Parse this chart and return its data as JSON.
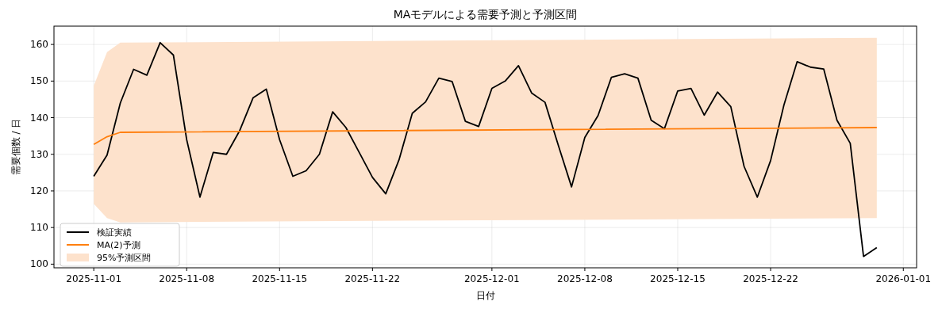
{
  "chart_data": {
    "type": "line",
    "title": "MAモデルによる需要予測と予測区間",
    "xlabel": "日付",
    "ylabel": "需要個数 / 日",
    "x": [
      "2025-11-01",
      "2025-11-02",
      "2025-11-03",
      "2025-11-04",
      "2025-11-05",
      "2025-11-06",
      "2025-11-07",
      "2025-11-08",
      "2025-11-09",
      "2025-11-10",
      "2025-11-11",
      "2025-11-12",
      "2025-11-13",
      "2025-11-14",
      "2025-11-15",
      "2025-11-16",
      "2025-11-17",
      "2025-11-18",
      "2025-11-19",
      "2025-11-20",
      "2025-11-21",
      "2025-11-22",
      "2025-11-23",
      "2025-11-24",
      "2025-11-25",
      "2025-11-26",
      "2025-11-27",
      "2025-11-28",
      "2025-11-29",
      "2025-11-30",
      "2025-12-01",
      "2025-12-02",
      "2025-12-03",
      "2025-12-04",
      "2025-12-05",
      "2025-12-06",
      "2025-12-07",
      "2025-12-08",
      "2025-12-09",
      "2025-12-10",
      "2025-12-11",
      "2025-12-12",
      "2025-12-13",
      "2025-12-14",
      "2025-12-15",
      "2025-12-16",
      "2025-12-17",
      "2025-12-18",
      "2025-12-19",
      "2025-12-20",
      "2025-12-21",
      "2025-12-22",
      "2025-12-23",
      "2025-12-24",
      "2025-12-25",
      "2025-12-26",
      "2025-12-27",
      "2025-12-28",
      "2025-12-29",
      "2025-12-30"
    ],
    "series": [
      {
        "name": "検証実績",
        "color": "#000000",
        "values": [
          124,
          129.8,
          144,
          153.2,
          151.6,
          160.5,
          157.1,
          134,
          118.3,
          130.5,
          130,
          136.5,
          145.4,
          147.8,
          134,
          124,
          125.5,
          130,
          141.6,
          137.3,
          130.5,
          123.7,
          119.2,
          128.5,
          141.2,
          144.3,
          150.8,
          149.9,
          139,
          137.6,
          148,
          150,
          154.2,
          146.7,
          144.2,
          132.5,
          121.1,
          134.6,
          140.6,
          151,
          152,
          150.8,
          139.3,
          137,
          147.3,
          148,
          140.7,
          147,
          143,
          126.7,
          118.3,
          128.3,
          143.4,
          155.3,
          153.8,
          153.3,
          139.3,
          133,
          102.1,
          104.5
        ]
      },
      {
        "name": "MA(2)予測",
        "color": "#ff7f0e",
        "x": [
          "2025-11-01",
          "2025-11-02",
          "2025-11-03",
          "2025-12-30"
        ],
        "values": [
          132.7,
          134.8,
          136.0,
          137.3
        ]
      },
      {
        "name": "95%予測区間",
        "type": "area",
        "color": "#fde2cc",
        "x": [
          "2025-11-01",
          "2025-11-02",
          "2025-11-03",
          "2025-12-30"
        ],
        "values": [
          null,
          null,
          null,
          null
        ],
        "lower": [
          116.5,
          112.6,
          111.4,
          112.6
        ],
        "upper": [
          148.7,
          157.9,
          160.5,
          161.8
        ]
      }
    ],
    "xlim": [
      "2025-10-29",
      "2026-01-02"
    ],
    "xticks": [
      "2025-11-01",
      "2025-11-08",
      "2025-11-15",
      "2025-11-22",
      "2025-12-01",
      "2025-12-08",
      "2025-12-15",
      "2025-12-22",
      "2026-01-01"
    ],
    "ylim": [
      99,
      165
    ],
    "yticks": [
      100,
      110,
      120,
      130,
      140,
      150,
      160
    ],
    "grid": true,
    "legend": "bottom left"
  }
}
